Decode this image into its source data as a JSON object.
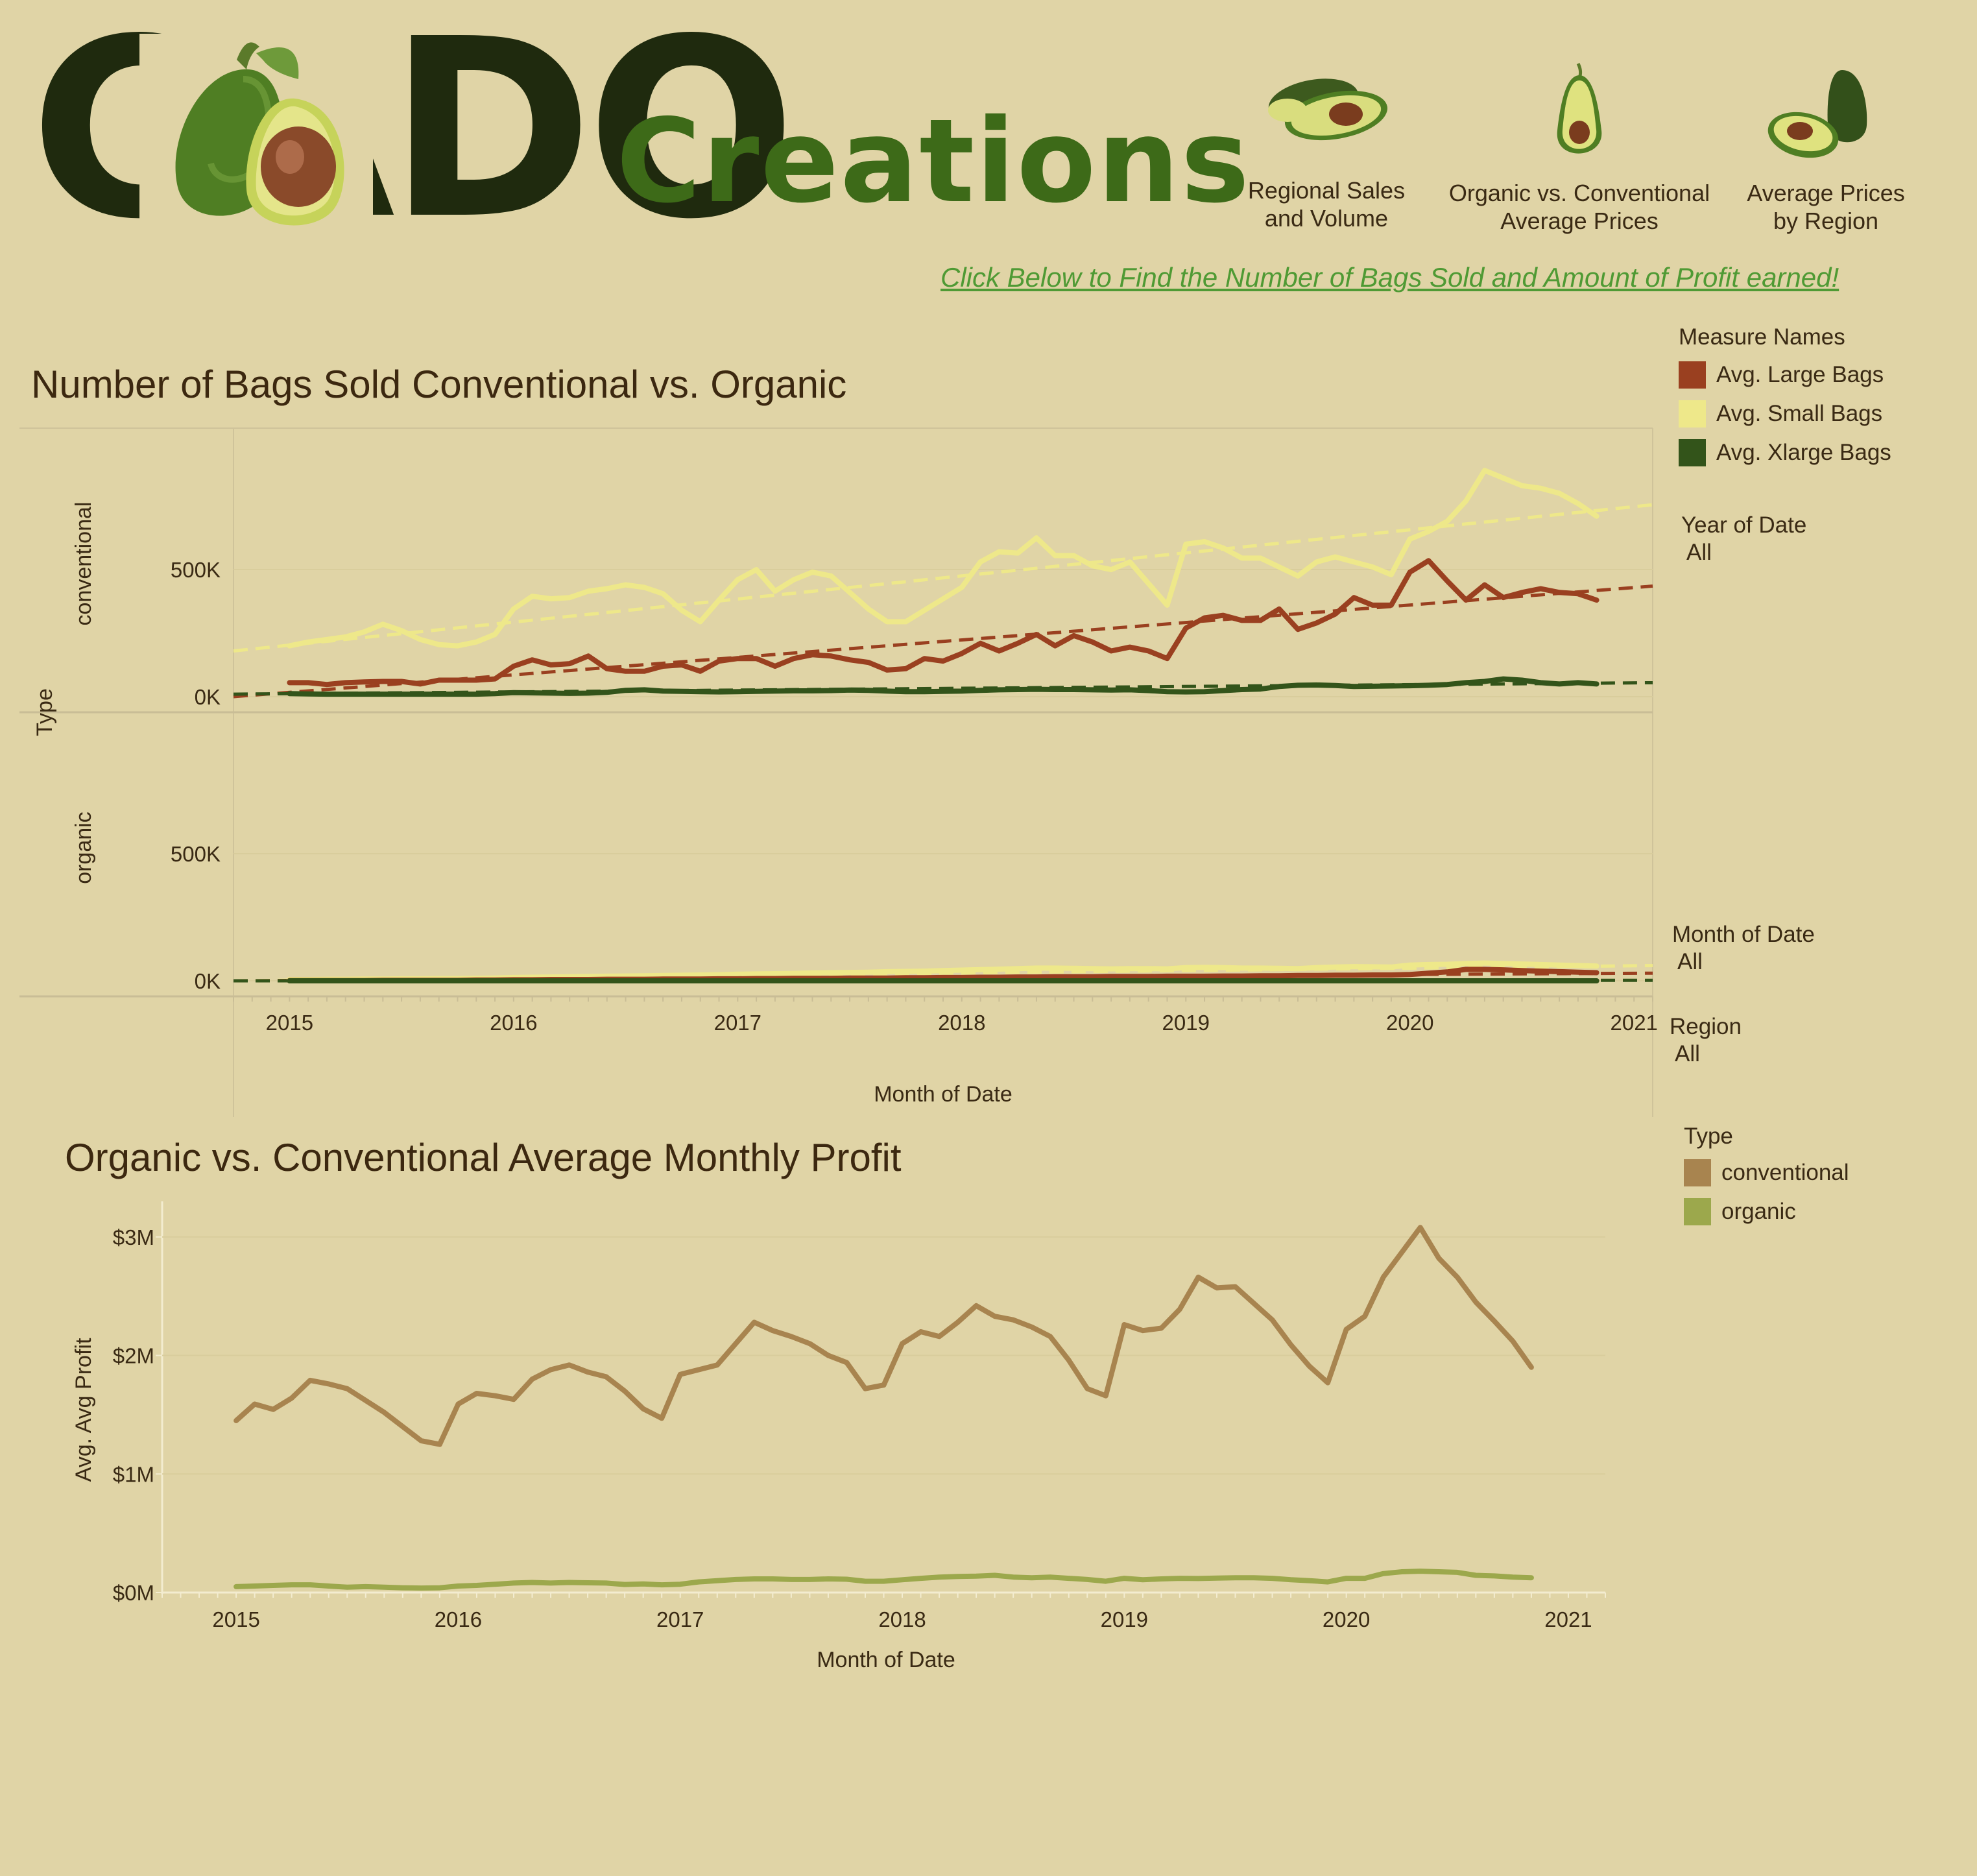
{
  "header": {
    "logo_letters": "CADO",
    "logo_word": "Creations",
    "nav": [
      {
        "label_line1": "Regional Sales",
        "label_line2": "and Volume"
      },
      {
        "label_line1": "Organic vs. Conventional",
        "label_line2": "Average Prices"
      },
      {
        "label_line1": "Average Prices",
        "label_line2": "by Region"
      }
    ],
    "link_text": "Click Below to Find the Number of Bags Sold and Amount of Profit earned!"
  },
  "colors": {
    "background": "#e0d4a6",
    "large_bags": "#9a4020",
    "small_bags": "#eee88a",
    "xlarge_bags": "#33541a",
    "conventional": "#a8844f",
    "organic": "#9ca84c",
    "link": "#4f9a34"
  },
  "legend_measures": {
    "title": "Measure Names",
    "items": [
      {
        "label": "Avg. Large Bags",
        "color": "#9a4020"
      },
      {
        "label": "Avg. Small Bags",
        "color": "#eee88a"
      },
      {
        "label": "Avg. Xlarge Bags",
        "color": "#33541a"
      }
    ]
  },
  "filters": [
    {
      "title": "Year of Date",
      "value": "All"
    },
    {
      "title": "Month of Date",
      "value": "All"
    },
    {
      "title": "Region",
      "value": "All"
    }
  ],
  "legend_type": {
    "title": "Type",
    "items": [
      {
        "label": "conventional",
        "color": "#a8844f"
      },
      {
        "label": "organic",
        "color": "#9ca84c"
      }
    ]
  },
  "chart_data": [
    {
      "type": "line",
      "title": "Number of Bags Sold Conventional vs. Organic",
      "xlabel": "Month of Date",
      "row_axis_label": "Type",
      "x_ticks": [
        "2015",
        "2016",
        "2017",
        "2018",
        "2019",
        "2020",
        "2021"
      ],
      "y_ticks": [
        "0K",
        "500K"
      ],
      "ylim": [
        0,
        1000000
      ],
      "x_range": [
        "2014-10",
        "2021-02"
      ],
      "x": [
        "2015-01",
        "2015-02",
        "2015-03",
        "2015-04",
        "2015-05",
        "2015-06",
        "2015-07",
        "2015-08",
        "2015-09",
        "2015-10",
        "2015-11",
        "2015-12",
        "2016-01",
        "2016-02",
        "2016-03",
        "2016-04",
        "2016-05",
        "2016-06",
        "2016-07",
        "2016-08",
        "2016-09",
        "2016-10",
        "2016-11",
        "2016-12",
        "2017-01",
        "2017-02",
        "2017-03",
        "2017-04",
        "2017-05",
        "2017-06",
        "2017-07",
        "2017-08",
        "2017-09",
        "2017-10",
        "2017-11",
        "2017-12",
        "2018-01",
        "2018-02",
        "2018-03",
        "2018-04",
        "2018-05",
        "2018-06",
        "2018-07",
        "2018-08",
        "2018-09",
        "2018-10",
        "2018-11",
        "2018-12",
        "2019-01",
        "2019-02",
        "2019-03",
        "2019-04",
        "2019-05",
        "2019-06",
        "2019-07",
        "2019-08",
        "2019-09",
        "2019-10",
        "2019-11",
        "2019-12",
        "2020-01",
        "2020-02",
        "2020-03",
        "2020-04",
        "2020-05",
        "2020-06",
        "2020-07",
        "2020-08",
        "2020-09",
        "2020-10",
        "2020-11"
      ],
      "panels": [
        {
          "label": "conventional",
          "series": [
            {
              "name": "Avg. Small Bags",
              "values": [
                200000,
                215000,
                225000,
                235000,
                255000,
                285000,
                260000,
                225000,
                205000,
                200000,
                215000,
                245000,
                345000,
                395000,
                385000,
                390000,
                415000,
                425000,
                440000,
                430000,
                405000,
                340000,
                295000,
                380000,
                460000,
                500000,
                415000,
                460000,
                490000,
                475000,
                410000,
                345000,
                295000,
                295000,
                340000,
                385000,
                430000,
                530000,
                570000,
                565000,
                625000,
                555000,
                555000,
                515000,
                500000,
                530000,
                445000,
                360000,
                600000,
                610000,
                585000,
                545000,
                545000,
                510000,
                475000,
                530000,
                550000,
                530000,
                510000,
                480000,
                620000,
                650000,
                690000,
                770000,
                890000,
                860000,
                830000,
                820000,
                800000,
                760000,
                710000
              ]
            },
            {
              "name": "Avg. Large Bags",
              "values": [
                55000,
                55000,
                48000,
                55000,
                58000,
                60000,
                60000,
                50000,
                65000,
                65000,
                65000,
                70000,
                120000,
                145000,
                125000,
                130000,
                160000,
                110000,
                100000,
                100000,
                120000,
                125000,
                100000,
                140000,
                150000,
                150000,
                120000,
                150000,
                165000,
                160000,
                145000,
                135000,
                105000,
                110000,
                150000,
                140000,
                170000,
                210000,
                180000,
                210000,
                245000,
                200000,
                240000,
                215000,
                180000,
                195000,
                180000,
                150000,
                270000,
                310000,
                320000,
                300000,
                300000,
                345000,
                265000,
                290000,
                325000,
                390000,
                360000,
                360000,
                490000,
                535000,
                455000,
                380000,
                440000,
                390000,
                410000,
                425000,
                410000,
                405000,
                380000
              ]
            },
            {
              "name": "Avg. Xlarge Bags",
              "values": [
                12000,
                11000,
                10000,
                10000,
                10000,
                10000,
                10000,
                10000,
                10000,
                10000,
                10000,
                12000,
                16000,
                15000,
                14000,
                13000,
                14000,
                17000,
                25000,
                27000,
                22000,
                21000,
                20000,
                19000,
                20000,
                21000,
                22000,
                23000,
                23000,
                24000,
                26000,
                25000,
                22000,
                20000,
                20000,
                21000,
                22000,
                25000,
                27000,
                28000,
                29000,
                28000,
                28000,
                27000,
                26000,
                27000,
                24000,
                20000,
                19000,
                20000,
                24000,
                28000,
                30000,
                40000,
                45000,
                46000,
                44000,
                40000,
                41000,
                42000,
                43000,
                45000,
                48000,
                55000,
                60000,
                70000,
                65000,
                55000,
                50000,
                55000,
                50000
              ]
            }
          ],
          "trends": [
            {
              "name": "Avg. Small Bags",
              "start": 180000,
              "end": 755000
            },
            {
              "name": "Avg. Large Bags",
              "start": 0,
              "end": 435000
            },
            {
              "name": "Avg. Xlarge Bags",
              "start": 10000,
              "end": 55000
            }
          ]
        },
        {
          "label": "organic",
          "series": [
            {
              "name": "Avg. Small Bags",
              "values": [
                5000,
                5000,
                6000,
                6000,
                7000,
                7000,
                8000,
                8000,
                9000,
                9000,
                10000,
                11000,
                13000,
                14000,
                15000,
                16000,
                17000,
                18000,
                19000,
                20000,
                21000,
                22000,
                23000,
                24000,
                26000,
                27000,
                28000,
                29000,
                31000,
                32000,
                33000,
                34000,
                36000,
                37000,
                38000,
                40000,
                42000,
                44000,
                46000,
                48000,
                50000,
                50000,
                49000,
                48000,
                47000,
                48000,
                48000,
                47000,
                52000,
                53000,
                52000,
                50000,
                50000,
                49000,
                48000,
                52000,
                54000,
                56000,
                55000,
                54000,
                62000,
                64000,
                65000,
                68000,
                70000,
                68000,
                66000,
                64000,
                62000,
                60000,
                58000
              ]
            },
            {
              "name": "Avg. Large Bags",
              "values": [
                1000,
                1000,
                1000,
                1000,
                1000,
                2000,
                2000,
                2000,
                2000,
                2000,
                3000,
                3000,
                4000,
                4000,
                5000,
                5000,
                5000,
                6000,
                6000,
                6000,
                7000,
                7000,
                7000,
                8000,
                8000,
                9000,
                9000,
                10000,
                10000,
                10000,
                11000,
                11000,
                11000,
                12000,
                12000,
                13000,
                13000,
                14000,
                14000,
                15000,
                15000,
                16000,
                16000,
                16000,
                17000,
                17000,
                17000,
                18000,
                18000,
                18000,
                19000,
                19000,
                20000,
                20000,
                21000,
                21000,
                22000,
                22000,
                23000,
                23000,
                25000,
                30000,
                35000,
                45000,
                45000,
                43000,
                40000,
                38000,
                36000,
                34000,
                32000
              ]
            },
            {
              "name": "Avg. Xlarge Bags",
              "values": [
                0,
                0,
                0,
                0,
                0,
                0,
                0,
                0,
                0,
                0,
                0,
                0,
                0,
                0,
                0,
                0,
                0,
                0,
                0,
                0,
                0,
                0,
                0,
                0,
                0,
                0,
                0,
                0,
                0,
                0,
                0,
                0,
                0,
                0,
                0,
                0,
                0,
                0,
                0,
                0,
                0,
                0,
                0,
                0,
                0,
                0,
                0,
                0,
                0,
                0,
                0,
                0,
                0,
                0,
                0,
                0,
                0,
                0,
                0,
                0,
                0,
                0,
                0,
                0,
                0,
                0,
                0,
                0,
                0,
                0,
                0
              ]
            }
          ],
          "trends": [
            {
              "name": "Avg. Small Bags",
              "start": 0,
              "end": 60000
            },
            {
              "name": "Avg. Large Bags",
              "start": 0,
              "end": 30000
            },
            {
              "name": "Avg. Xlarge Bags",
              "start": 0,
              "end": 2000
            }
          ]
        }
      ]
    },
    {
      "type": "line",
      "title": "Organic vs. Conventional Average Monthly Profit",
      "xlabel": "Month of Date",
      "ylabel": "Avg. Avg Profit",
      "x_ticks": [
        "2015",
        "2016",
        "2017",
        "2018",
        "2019",
        "2020",
        "2021"
      ],
      "y_ticks": [
        "$0M",
        "$1M",
        "$2M",
        "$3M"
      ],
      "ylim": [
        0,
        3300000
      ],
      "x_range": [
        "2014-09",
        "2021-03"
      ],
      "x": [
        "2015-01",
        "2015-02",
        "2015-03",
        "2015-04",
        "2015-05",
        "2015-06",
        "2015-07",
        "2015-08",
        "2015-09",
        "2015-10",
        "2015-11",
        "2015-12",
        "2016-01",
        "2016-02",
        "2016-03",
        "2016-04",
        "2016-05",
        "2016-06",
        "2016-07",
        "2016-08",
        "2016-09",
        "2016-10",
        "2016-11",
        "2016-12",
        "2017-01",
        "2017-02",
        "2017-03",
        "2017-04",
        "2017-05",
        "2017-06",
        "2017-07",
        "2017-08",
        "2017-09",
        "2017-10",
        "2017-11",
        "2017-12",
        "2018-01",
        "2018-02",
        "2018-03",
        "2018-04",
        "2018-05",
        "2018-06",
        "2018-07",
        "2018-08",
        "2018-09",
        "2018-10",
        "2018-11",
        "2018-12",
        "2019-01",
        "2019-02",
        "2019-03",
        "2019-04",
        "2019-05",
        "2019-06",
        "2019-07",
        "2019-08",
        "2019-09",
        "2019-10",
        "2019-11",
        "2019-12",
        "2020-01",
        "2020-02",
        "2020-03",
        "2020-04",
        "2020-05",
        "2020-06",
        "2020-07",
        "2020-08",
        "2020-09",
        "2020-10",
        "2020-11"
      ],
      "series": [
        {
          "name": "conventional",
          "values": [
            1450000,
            1590000,
            1545000,
            1640000,
            1790000,
            1760000,
            1720000,
            1620000,
            1520000,
            1400000,
            1280000,
            1250000,
            1590000,
            1680000,
            1660000,
            1630000,
            1800000,
            1880000,
            1920000,
            1860000,
            1820000,
            1700000,
            1550000,
            1470000,
            1840000,
            1880000,
            1920000,
            2100000,
            2280000,
            2210000,
            2160000,
            2100000,
            2000000,
            1940000,
            1720000,
            1750000,
            2100000,
            2200000,
            2160000,
            2280000,
            2420000,
            2330000,
            2300000,
            2240000,
            2160000,
            1960000,
            1720000,
            1660000,
            2260000,
            2210000,
            2230000,
            2390000,
            2660000,
            2570000,
            2580000,
            2440000,
            2300000,
            2090000,
            1910000,
            1770000,
            2220000,
            2330000,
            2660000,
            2870000,
            3080000,
            2820000,
            2660000,
            2450000,
            2290000,
            2120000,
            1900000
          ]
        },
        {
          "name": "organic",
          "values": [
            50000,
            55000,
            60000,
            65000,
            65000,
            55000,
            45000,
            50000,
            45000,
            40000,
            38000,
            40000,
            55000,
            60000,
            70000,
            80000,
            85000,
            80000,
            85000,
            82000,
            80000,
            68000,
            72000,
            65000,
            70000,
            90000,
            100000,
            110000,
            115000,
            115000,
            110000,
            110000,
            115000,
            112000,
            95000,
            95000,
            108000,
            120000,
            130000,
            135000,
            138000,
            145000,
            130000,
            125000,
            130000,
            120000,
            110000,
            95000,
            120000,
            108000,
            115000,
            120000,
            118000,
            122000,
            125000,
            125000,
            120000,
            108000,
            100000,
            90000,
            120000,
            120000,
            160000,
            175000,
            180000,
            175000,
            170000,
            145000,
            140000,
            130000,
            125000
          ]
        }
      ]
    }
  ]
}
